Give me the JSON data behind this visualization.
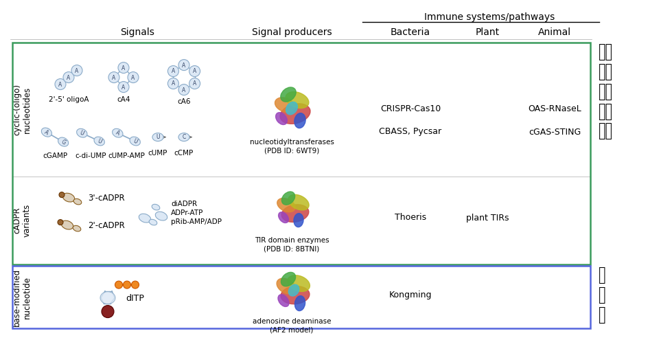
{
  "bg_color": "#ffffff",
  "header_signals": "Signals",
  "header_signal_producers": "Signal producers",
  "header_immune": "Immune systems/pathways",
  "header_bacteria": "Bacteria",
  "header_plant": "Plant",
  "header_animal": "Animal",
  "row1_label": "cyclic-(oligo)\nnucleotides",
  "row2_label": "cADPR\nvariants",
  "row3_label": "base-modified\nnucleotide",
  "right_label1": "免疫\n信号\n通路\n经典\n体系",
  "right_label2": "本\n研\n究",
  "green_box_color": "#3a9b5c",
  "blue_box_color": "#5566dd",
  "row1_signals_top_labels": [
    "2'-5' oligoA",
    "cA4",
    "cA6"
  ],
  "row1_signals_bot_labels": [
    "cGAMP",
    "c-di-UMP",
    "cUMP-AMP",
    "cUMP",
    "cCMP"
  ],
  "row1_producer": "nucleotidyltransferases\n(PDB ID: 6WT9)",
  "row1_bacteria": [
    "CRISPR-Cas10",
    "CBASS, Pycsar"
  ],
  "row1_animal": [
    "OAS-RNaseL",
    "cGAS-STING"
  ],
  "row2_signals_labels": [
    "3'-cADPR",
    "2'-cADPR",
    "diADPR\nADPr-ATP\npRib-AMP/ADP"
  ],
  "row2_producer": "TIR domain enzymes\n(PDB ID: 8BTNI)",
  "row2_bacteria": "Thoeris",
  "row2_plant": "plant TIRs",
  "row3_signal_label": "dITP",
  "row3_producer": "adenosine deaminase\n(AF2 model)",
  "row3_bacteria": "Kongming",
  "nuc_fill": "#dce8f5",
  "nuc_edge": "#8aaac8",
  "nuc_letter": "#334466",
  "br_fill": "#ddd0bb",
  "br_edge": "#8B6020"
}
